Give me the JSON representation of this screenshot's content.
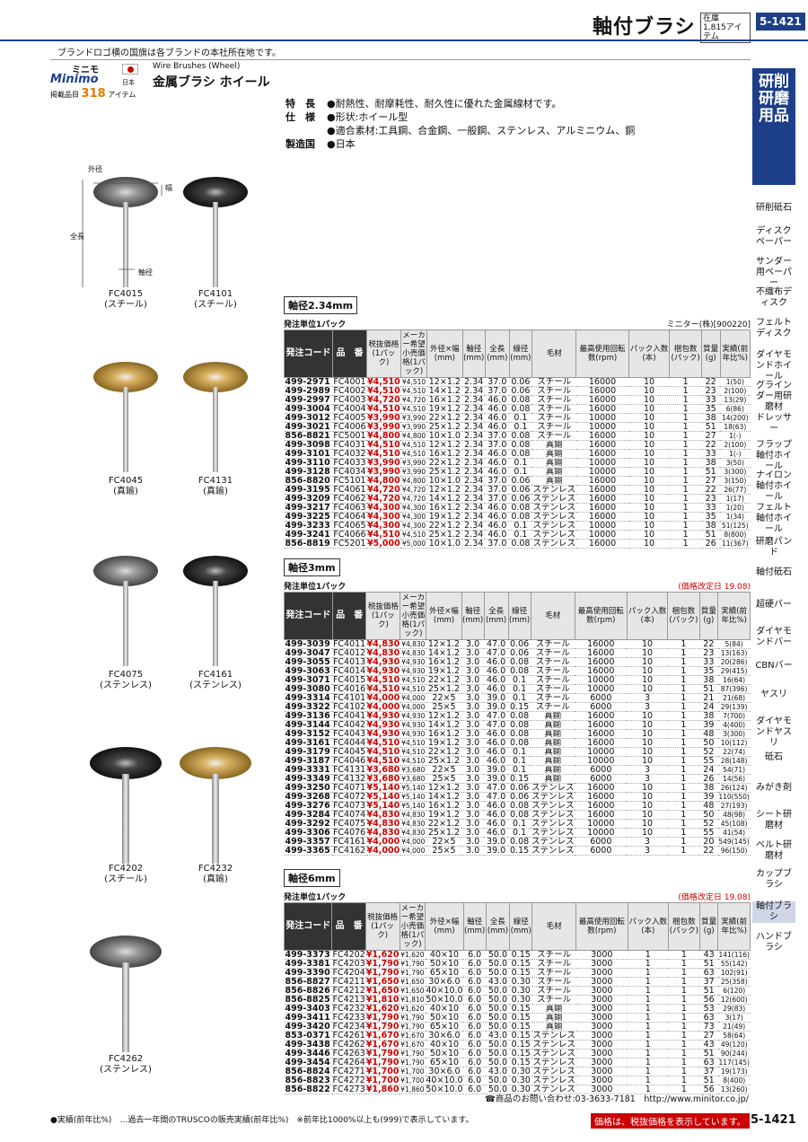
{
  "header": {
    "title": "軸付ブラシ",
    "stock_label": "在庫",
    "stock_count": "1,815アイテム",
    "page": "5-1421"
  },
  "note_top": "ブランドロゴ横の国旗は各ブランドの本社所在地です。",
  "brand": {
    "name_jp": "ミニモ",
    "logo": "Minimo",
    "country": "日本",
    "count_label": "掲載品目",
    "count": "318",
    "count_unit": "アイテム"
  },
  "product": {
    "en": "Wire Brushes (Wheel)",
    "jp": "金属ブラシ ホイール"
  },
  "spec": [
    {
      "k": "特　長",
      "v": "●耐熱性、耐摩耗性、耐久性に優れた金属線材です。"
    },
    {
      "k": "仕　様",
      "v": "●形状:ホイール型"
    },
    {
      "k": "",
      "v": "●適合素材:工具鋼、合金鋼、一般鋼、ステンレス、アルミニウム、銅"
    },
    {
      "k": "製造国",
      "v": "●日本"
    }
  ],
  "side": {
    "label": "研削研磨用品",
    "cats": [
      "研削砥石",
      "ディスクペーパー",
      "サンダー用ペーパー",
      "不織布ディスク",
      "フェルトディスク",
      "ダイヤモンドホイール",
      "グラインダー用研磨材",
      "ドレッサー",
      "フラップ軸付ホイール",
      "ナイロン軸付ホイール",
      "フェルト軸付ホイール",
      "研磨パンド",
      "軸付砥石",
      "超硬バー",
      "ダイヤモンドバー",
      "CBNバー",
      "ヤスリ",
      "ダイヤモンドヤスリ",
      "砥石",
      "みがき剤",
      "シート研磨材",
      "ベルト研磨材",
      "カップブラシ",
      "軸付ブラシ",
      "ハンドブラシ"
    ]
  },
  "images": [
    {
      "a": "FC4015",
      "b": "(スチール)"
    },
    {
      "a": "FC4101",
      "b": "(スチール)"
    },
    {
      "a": "FC4045",
      "b": "(真鍮)"
    },
    {
      "a": "FC4131",
      "b": "(真鍮)"
    },
    {
      "a": "FC4075",
      "b": "(ステンレス)"
    },
    {
      "a": "FC4161",
      "b": "(ステンレス)"
    },
    {
      "a": "FC4202",
      "b": "(スチール)"
    },
    {
      "a": "FC4232",
      "b": "(真鍮)"
    },
    {
      "a": "FC4262",
      "b": "(ステンレス)"
    }
  ],
  "dim_labels": {
    "od": "外径",
    "w": "幅",
    "len": "全長",
    "shaft": "軸径"
  },
  "table_head": [
    "発注コード",
    "品　番",
    "税抜価格(1パック)",
    "メーカー希望小売価格(1パック)",
    "外径×幅(mm)",
    "軸径(mm)",
    "全長(mm)",
    "線径(mm)",
    "毛材",
    "最高使用回転数(rpm)",
    "パック入数(本)",
    "梱包数(パック)",
    "質量(g)",
    "実績(前年比%)"
  ],
  "sections": [
    {
      "title": "軸径2.34mm",
      "unit": "発注単位1パック",
      "note": "ミニター(株)[900220]",
      "rows": [
        [
          "499-2971",
          "FC4001",
          "¥4,510",
          "¥4,510",
          "12×1.2",
          "2.34",
          "37.0",
          "0.06",
          "スチール",
          "16000",
          "10",
          "1",
          "22",
          "1(50)"
        ],
        [
          "499-2989",
          "FC4002",
          "¥4,510",
          "¥4,510",
          "14×1.2",
          "2.34",
          "37.0",
          "0.06",
          "スチール",
          "16000",
          "10",
          "1",
          "23",
          "2(100)"
        ],
        [
          "499-2997",
          "FC4003",
          "¥4,720",
          "¥4,720",
          "16×1.2",
          "2.34",
          "46.0",
          "0.08",
          "スチール",
          "16000",
          "10",
          "1",
          "33",
          "13(29)"
        ],
        [
          "499-3004",
          "FC4004",
          "¥4,510",
          "¥4,510",
          "19×1.2",
          "2.34",
          "46.0",
          "0.08",
          "スチール",
          "16000",
          "10",
          "1",
          "35",
          "6(86)"
        ],
        [
          "499-3012",
          "FC4005",
          "¥3,990",
          "¥3,990",
          "22×1.2",
          "2.34",
          "46.0",
          "0.1",
          "スチール",
          "10000",
          "10",
          "1",
          "38",
          "14(200)"
        ],
        [
          "499-3021",
          "FC4006",
          "¥3,990",
          "¥3,990",
          "25×1.2",
          "2.34",
          "46.0",
          "0.1",
          "スチール",
          "10000",
          "10",
          "1",
          "51",
          "18(63)"
        ],
        [
          "856-8821",
          "FC5001",
          "¥4,800",
          "¥4,800",
          "10×1.0",
          "2.34",
          "37.0",
          "0.08",
          "スチール",
          "16000",
          "10",
          "1",
          "27",
          "1(-)"
        ],
        [
          "499-3098",
          "FC4031",
          "¥4,510",
          "¥4,510",
          "12×1.2",
          "2.34",
          "37.0",
          "0.08",
          "真鍮",
          "16000",
          "10",
          "1",
          "22",
          "2(100)"
        ],
        [
          "499-3101",
          "FC4032",
          "¥4,510",
          "¥4,510",
          "16×1.2",
          "2.34",
          "46.0",
          "0.08",
          "真鍮",
          "16000",
          "10",
          "1",
          "33",
          "1(-)"
        ],
        [
          "499-3110",
          "FC4033",
          "¥3,990",
          "¥3,990",
          "22×1.2",
          "2.34",
          "46.0",
          "0.1",
          "真鍮",
          "10000",
          "10",
          "1",
          "38",
          "3(50)"
        ],
        [
          "499-3128",
          "FC4034",
          "¥3,990",
          "¥3,990",
          "25×1.2",
          "2.34",
          "46.0",
          "0.1",
          "真鍮",
          "10000",
          "10",
          "1",
          "51",
          "3(300)"
        ],
        [
          "856-8820",
          "FC5101",
          "¥4,800",
          "¥4,800",
          "10×1.0",
          "2.34",
          "37.0",
          "0.06",
          "真鍮",
          "16000",
          "10",
          "1",
          "27",
          "3(150)"
        ],
        [
          "499-3195",
          "FC4061",
          "¥4,720",
          "¥4,720",
          "12×1.2",
          "2.34",
          "37.0",
          "0.06",
          "ステンレス",
          "16000",
          "10",
          "1",
          "22",
          "26(77)"
        ],
        [
          "499-3209",
          "FC4062",
          "¥4,720",
          "¥4,720",
          "14×1.2",
          "2.34",
          "37.0",
          "0.06",
          "ステンレス",
          "16000",
          "10",
          "1",
          "23",
          "1(17)"
        ],
        [
          "499-3217",
          "FC4063",
          "¥4,300",
          "¥4,300",
          "16×1.2",
          "2.34",
          "46.0",
          "0.08",
          "ステンレス",
          "16000",
          "10",
          "1",
          "33",
          "1(20)"
        ],
        [
          "499-3225",
          "FC4064",
          "¥4,300",
          "¥4,300",
          "19×1.2",
          "2.34",
          "46.0",
          "0.08",
          "ステンレス",
          "16000",
          "10",
          "1",
          "35",
          "1(34)"
        ],
        [
          "499-3233",
          "FC4065",
          "¥4,300",
          "¥4,300",
          "22×1.2",
          "2.34",
          "46.0",
          "0.1",
          "ステンレス",
          "10000",
          "10",
          "1",
          "38",
          "51(125)"
        ],
        [
          "499-3241",
          "FC4066",
          "¥4,510",
          "¥4,510",
          "25×1.2",
          "2.34",
          "46.0",
          "0.1",
          "ステンレス",
          "10000",
          "10",
          "1",
          "51",
          "8(800)"
        ],
        [
          "856-8819",
          "FC5201",
          "¥5,000",
          "¥5,000",
          "10×1.0",
          "2.34",
          "37.0",
          "0.08",
          "ステンレス",
          "16000",
          "10",
          "1",
          "26",
          "11(367)"
        ]
      ]
    },
    {
      "title": "軸径3mm",
      "unit": "発注単位1パック",
      "note": "(価格改定日 19.08)",
      "rows": [
        [
          "499-3039",
          "FC4011",
          "¥4,830",
          "¥4,830",
          "12×1.2",
          "3.0",
          "47.0",
          "0.06",
          "スチール",
          "16000",
          "10",
          "1",
          "22",
          "5(84)"
        ],
        [
          "499-3047",
          "FC4012",
          "¥4,830",
          "¥4,830",
          "14×1.2",
          "3.0",
          "47.0",
          "0.06",
          "スチール",
          "16000",
          "10",
          "1",
          "23",
          "13(163)"
        ],
        [
          "499-3055",
          "FC4013",
          "¥4,930",
          "¥4,930",
          "16×1.2",
          "3.0",
          "46.0",
          "0.08",
          "スチール",
          "16000",
          "10",
          "1",
          "33",
          "20(286)"
        ],
        [
          "499-3063",
          "FC4014",
          "¥4,930",
          "¥4,930",
          "19×1.2",
          "3.0",
          "46.0",
          "0.08",
          "スチール",
          "16000",
          "10",
          "1",
          "35",
          "29(415)"
        ],
        [
          "499-3071",
          "FC4015",
          "¥4,510",
          "¥4,510",
          "22×1.2",
          "3.0",
          "46.0",
          "0.1",
          "スチール",
          "10000",
          "10",
          "1",
          "38",
          "16(64)"
        ],
        [
          "499-3080",
          "FC4016",
          "¥4,510",
          "¥4,510",
          "25×1.2",
          "3.0",
          "46.0",
          "0.1",
          "スチール",
          "10000",
          "10",
          "1",
          "51",
          "87(396)"
        ],
        [
          "499-3314",
          "FC4101",
          "¥4,000",
          "¥4,000",
          "22×5",
          "3.0",
          "39.0",
          "0.1",
          "スチール",
          "6000",
          "3",
          "1",
          "21",
          "21(68)"
        ],
        [
          "499-3322",
          "FC4102",
          "¥4,000",
          "¥4,000",
          "25×5",
          "3.0",
          "39.0",
          "0.15",
          "スチール",
          "6000",
          "3",
          "1",
          "24",
          "29(139)"
        ],
        [
          "499-3136",
          "FC4041",
          "¥4,930",
          "¥4,930",
          "12×1.2",
          "3.0",
          "47.0",
          "0.08",
          "真鍮",
          "16000",
          "10",
          "1",
          "38",
          "7(700)"
        ],
        [
          "499-3144",
          "FC4042",
          "¥4,930",
          "¥4,930",
          "14×1.2",
          "3.0",
          "47.0",
          "0.08",
          "真鍮",
          "16000",
          "10",
          "1",
          "39",
          "4(400)"
        ],
        [
          "499-3152",
          "FC4043",
          "¥4,930",
          "¥4,930",
          "16×1.2",
          "3.0",
          "46.0",
          "0.08",
          "真鍮",
          "16000",
          "10",
          "1",
          "48",
          "3(300)"
        ],
        [
          "499-3161",
          "FC4044",
          "¥4,510",
          "¥4,510",
          "19×1.2",
          "3.0",
          "46.0",
          "0.08",
          "真鍮",
          "16000",
          "10",
          "1",
          "50",
          "10(112)"
        ],
        [
          "499-3179",
          "FC4045",
          "¥4,510",
          "¥4,510",
          "22×1.2",
          "3.0",
          "46.0",
          "0.1",
          "真鍮",
          "10000",
          "10",
          "1",
          "52",
          "22(74)"
        ],
        [
          "499-3187",
          "FC4046",
          "¥4,510",
          "¥4,510",
          "25×1.2",
          "3.0",
          "46.0",
          "0.1",
          "真鍮",
          "10000",
          "10",
          "1",
          "55",
          "28(148)"
        ],
        [
          "499-3331",
          "FC4131",
          "¥3,680",
          "¥3,680",
          "22×5",
          "3.0",
          "39.0",
          "0.1",
          "真鍮",
          "6000",
          "3",
          "1",
          "24",
          "54(71)"
        ],
        [
          "499-3349",
          "FC4132",
          "¥3,680",
          "¥3,680",
          "25×5",
          "3.0",
          "39.0",
          "0.15",
          "真鍮",
          "6000",
          "3",
          "1",
          "26",
          "14(56)"
        ],
        [
          "499-3250",
          "FC4071",
          "¥5,140",
          "¥5,140",
          "12×1.2",
          "3.0",
          "47.0",
          "0.06",
          "ステンレス",
          "16000",
          "10",
          "1",
          "38",
          "26(124)"
        ],
        [
          "499-3268",
          "FC4072",
          "¥5,140",
          "¥5,140",
          "14×1.2",
          "3.0",
          "47.0",
          "0.06",
          "ステンレス",
          "16000",
          "10",
          "1",
          "39",
          "110(550)"
        ],
        [
          "499-3276",
          "FC4073",
          "¥5,140",
          "¥5,140",
          "16×1.2",
          "3.0",
          "46.0",
          "0.08",
          "ステンレス",
          "16000",
          "10",
          "1",
          "48",
          "27(193)"
        ],
        [
          "499-3284",
          "FC4074",
          "¥4,830",
          "¥4,830",
          "19×1.2",
          "3.0",
          "46.0",
          "0.08",
          "ステンレス",
          "16000",
          "10",
          "1",
          "50",
          "48(98)"
        ],
        [
          "499-3292",
          "FC4075",
          "¥4,830",
          "¥4,830",
          "22×1.2",
          "3.0",
          "46.0",
          "0.1",
          "ステンレス",
          "10000",
          "10",
          "1",
          "52",
          "45(108)"
        ],
        [
          "499-3306",
          "FC4076",
          "¥4,830",
          "¥4,830",
          "25×1.2",
          "3.0",
          "46.0",
          "0.1",
          "ステンレス",
          "10000",
          "10",
          "1",
          "55",
          "41(54)"
        ],
        [
          "499-3357",
          "FC4161",
          "¥4,000",
          "¥4,000",
          "22×5",
          "3.0",
          "39.0",
          "0.08",
          "ステンレス",
          "6000",
          "3",
          "1",
          "20",
          "549(145)"
        ],
        [
          "499-3365",
          "FC4162",
          "¥4,000",
          "¥4,000",
          "25×5",
          "3.0",
          "39.0",
          "0.15",
          "ステンレス",
          "6000",
          "3",
          "1",
          "22",
          "96(150)"
        ]
      ]
    },
    {
      "title": "軸径6mm",
      "unit": "発注単位1パック",
      "note": "(価格改定日 19.08)",
      "rows": [
        [
          "499-3373",
          "FC4202",
          "¥1,620",
          "¥1,620",
          "40×10",
          "6.0",
          "50.0",
          "0.15",
          "スチール",
          "3000",
          "1",
          "1",
          "43",
          "141(116)"
        ],
        [
          "499-3381",
          "FC4203",
          "¥1,790",
          "¥1,790",
          "50×10",
          "6.0",
          "50.0",
          "0.15",
          "スチール",
          "3000",
          "1",
          "1",
          "51",
          "55(142)"
        ],
        [
          "499-3390",
          "FC4204",
          "¥1,790",
          "¥1,790",
          "65×10",
          "6.0",
          "50.0",
          "0.15",
          "スチール",
          "3000",
          "1",
          "1",
          "63",
          "102(91)"
        ],
        [
          "856-8827",
          "FC4211",
          "¥1,650",
          "¥1,650",
          "30×6.0",
          "6.0",
          "43.0",
          "0.30",
          "スチール",
          "3000",
          "1",
          "1",
          "37",
          "25(358)"
        ],
        [
          "856-8826",
          "FC4212",
          "¥1,650",
          "¥1,650",
          "40×10.0",
          "6.0",
          "50.0",
          "0.30",
          "スチール",
          "3000",
          "1",
          "1",
          "51",
          "6(120)"
        ],
        [
          "856-8825",
          "FC4213",
          "¥1,810",
          "¥1,810",
          "50×10.0",
          "6.0",
          "50.0",
          "0.30",
          "スチール",
          "3000",
          "1",
          "1",
          "56",
          "12(600)"
        ],
        [
          "499-3403",
          "FC4232",
          "¥1,620",
          "¥1,620",
          "40×10",
          "6.0",
          "50.0",
          "0.15",
          "真鍮",
          "3000",
          "1",
          "1",
          "53",
          "29(83)"
        ],
        [
          "499-3411",
          "FC4233",
          "¥1,790",
          "¥1,790",
          "50×10",
          "6.0",
          "50.0",
          "0.15",
          "真鍮",
          "3000",
          "1",
          "1",
          "63",
          "3(17)"
        ],
        [
          "499-3420",
          "FC4234",
          "¥1,790",
          "¥1,790",
          "65×10",
          "6.0",
          "50.0",
          "0.15",
          "真鍮",
          "3000",
          "1",
          "1",
          "73",
          "21(49)"
        ],
        [
          "853-0371",
          "FC4261",
          "¥1,670",
          "¥1,670",
          "30×6.0",
          "6.0",
          "43.0",
          "0.15",
          "ステンレス",
          "3000",
          "1",
          "1",
          "27",
          "58(64)"
        ],
        [
          "499-3438",
          "FC4262",
          "¥1,670",
          "¥1,670",
          "40×10",
          "6.0",
          "50.0",
          "0.15",
          "ステンレス",
          "3000",
          "1",
          "1",
          "43",
          "49(120)"
        ],
        [
          "499-3446",
          "FC4263",
          "¥1,790",
          "¥1,790",
          "50×10",
          "6.0",
          "50.0",
          "0.15",
          "ステンレス",
          "3000",
          "1",
          "1",
          "51",
          "90(244)"
        ],
        [
          "499-3454",
          "FC4264",
          "¥1,790",
          "¥1,790",
          "65×10",
          "6.0",
          "50.0",
          "0.15",
          "ステンレス",
          "3000",
          "1",
          "1",
          "63",
          "117(145)"
        ],
        [
          "856-8824",
          "FC4271",
          "¥1,700",
          "¥1,700",
          "30×6.0",
          "6.0",
          "43.0",
          "0.30",
          "ステンレス",
          "3000",
          "1",
          "1",
          "37",
          "19(173)"
        ],
        [
          "856-8823",
          "FC4272",
          "¥1,700",
          "¥1,700",
          "40×10.0",
          "6.0",
          "50.0",
          "0.30",
          "ステンレス",
          "3000",
          "1",
          "1",
          "51",
          "8(400)"
        ],
        [
          "856-8822",
          "FC4273",
          "¥1,860",
          "¥1,860",
          "50×10.0",
          "6.0",
          "50.0",
          "0.30",
          "ステンレス",
          "3000",
          "1",
          "1",
          "56",
          "13(260)"
        ]
      ]
    }
  ],
  "contact": "☎商品のお問い合わせ:03-3633-7181　http://www.minitor.co.jp/",
  "footer": {
    "left": "●実績(前年比%)　…過去一年間のTRUSCOの販売実績(前年比%)　※前年比1000%以上も(999)で表示しています。",
    "right": "価格は、税抜価格を表示しています。",
    "page": "5-1421"
  }
}
